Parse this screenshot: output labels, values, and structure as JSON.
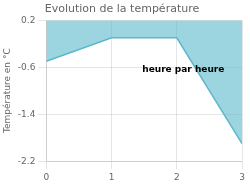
{
  "chart_data": {
    "type": "line",
    "title": "Evolution de la température",
    "y_label": "Température en °C",
    "annotations": [
      "heure par heure"
    ],
    "x": [
      0,
      1,
      2,
      3
    ],
    "series": [
      {
        "name": "Température en °C",
        "color": "#5ab8cc",
        "values": [
          -0.5,
          -0.1,
          -0.1,
          -1.9
        ]
      }
    ],
    "xlim": [
      0,
      3
    ],
    "xticks": [
      0,
      1,
      2,
      3
    ],
    "ylim": [
      -2.2,
      0.2
    ],
    "yticks": [
      0.2,
      -0.6,
      -1.4,
      -2.2
    ],
    "grid": true
  }
}
